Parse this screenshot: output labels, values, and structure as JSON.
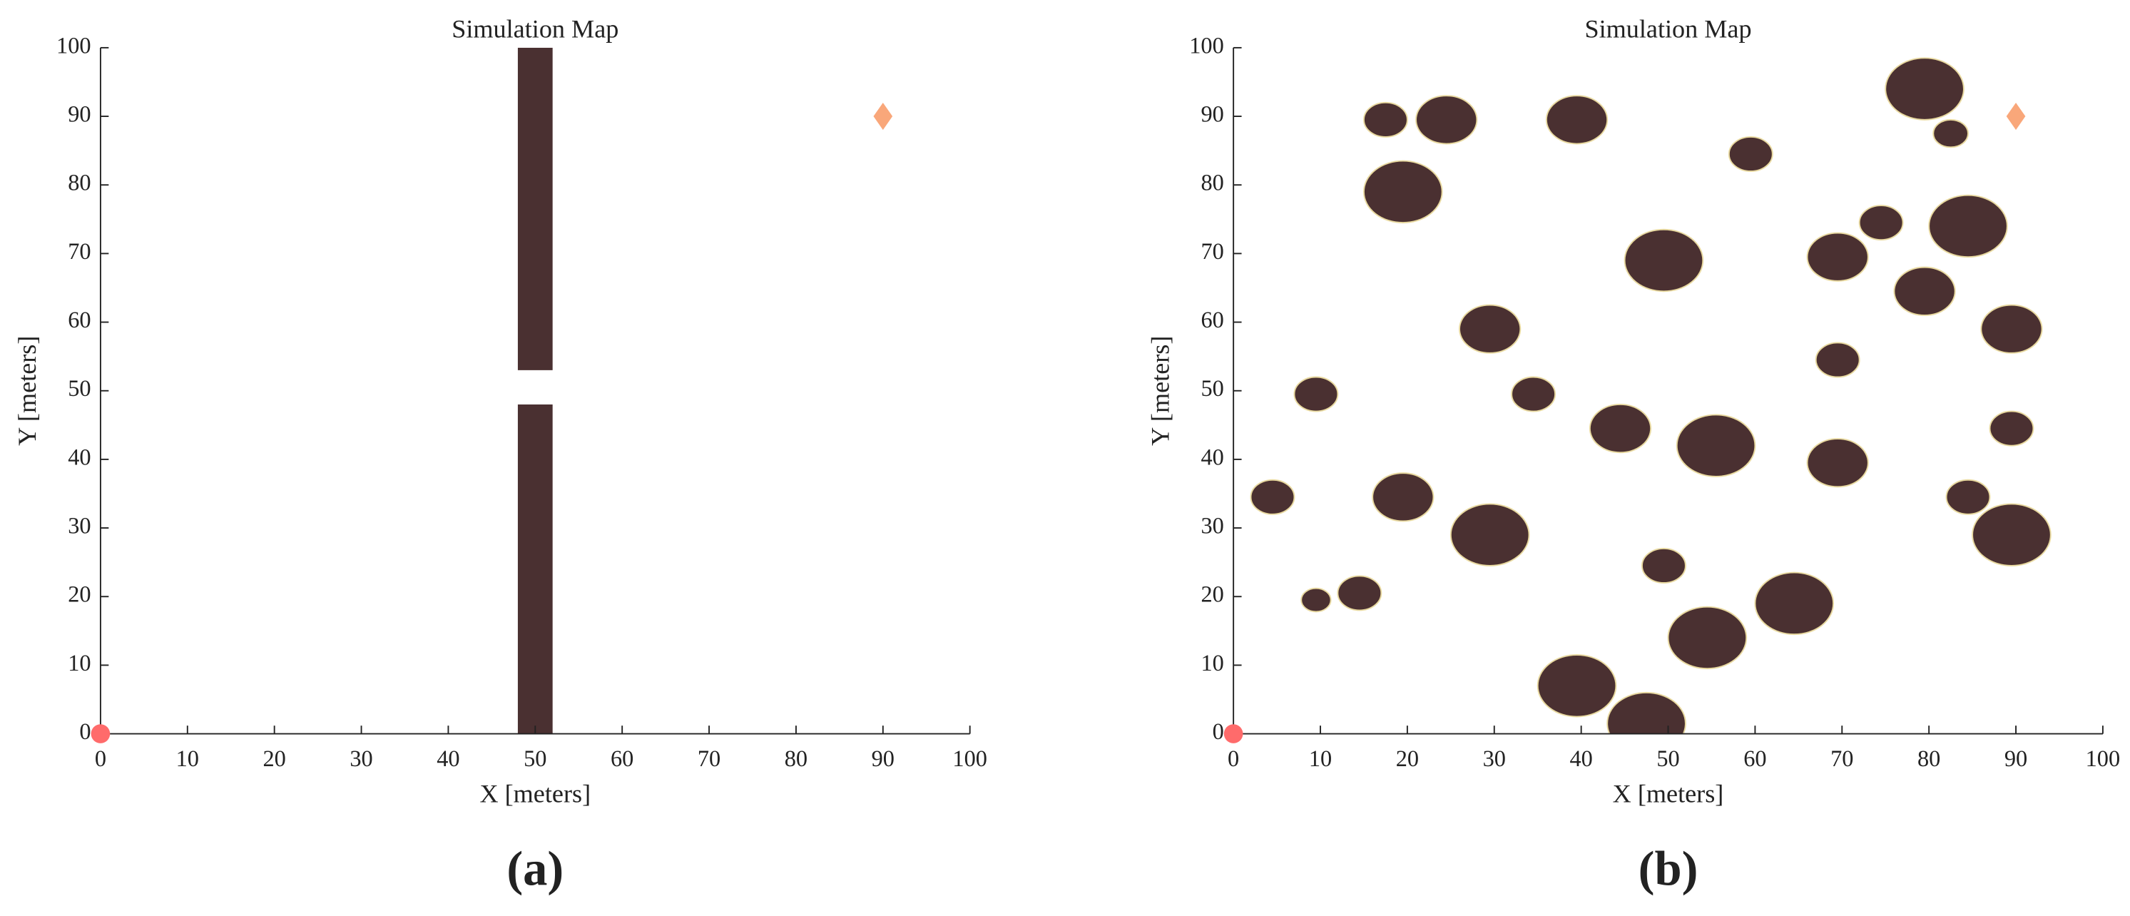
{
  "chart_data": [
    {
      "type": "map",
      "title": "Simulation Map",
      "xlabel": "X [meters]",
      "ylabel": "Y [meters]",
      "panel_label": "(a)",
      "xlim": [
        0,
        100
      ],
      "ylim": [
        0,
        100
      ],
      "xticks": [
        0,
        10,
        20,
        30,
        40,
        50,
        60,
        70,
        80,
        90,
        100
      ],
      "yticks": [
        0,
        10,
        20,
        30,
        40,
        50,
        60,
        70,
        80,
        90,
        100
      ],
      "obstacle_color": "#4a3031",
      "walls": {
        "x0": [
          48,
          48
        ],
        "x1": [
          52,
          52
        ],
        "y0": [
          53,
          0
        ],
        "y1": [
          100,
          48
        ]
      },
      "start": {
        "x": 0,
        "y": 0,
        "color": "#ff6b6b"
      },
      "goal": {
        "x": 90,
        "y": 90,
        "color": "#f9a77a"
      }
    },
    {
      "type": "map",
      "title": "Simulation Map",
      "xlabel": "X [meters]",
      "ylabel": "Y [meters]",
      "panel_label": "(b)",
      "xlim": [
        0,
        100
      ],
      "ylim": [
        0,
        100
      ],
      "xticks": [
        0,
        10,
        20,
        30,
        40,
        50,
        60,
        70,
        80,
        90,
        100
      ],
      "yticks": [
        0,
        10,
        20,
        30,
        40,
        50,
        60,
        70,
        80,
        90,
        100
      ],
      "obstacle_color": "#4a3031",
      "obstacle_edge": "#e8d9a0",
      "obstacles": {
        "x": [
          79.5,
          17.5,
          24.5,
          39.5,
          82.5,
          59.5,
          19.5,
          74.5,
          84.5,
          49.5,
          69.5,
          79.5,
          29.5,
          89.5,
          69.5,
          9.5,
          34.5,
          44.5,
          55.5,
          69.5,
          89.5,
          4.5,
          19.5,
          84.5,
          29.5,
          89.5,
          49.5,
          9.5,
          14.5,
          64.5,
          54.5,
          39.5,
          47.5
        ],
        "y": [
          94,
          89.5,
          89.5,
          89.5,
          87.5,
          84.5,
          79,
          74.5,
          74,
          69,
          69.5,
          64.5,
          59,
          59,
          54.5,
          49.5,
          49.5,
          44.5,
          42,
          39.5,
          44.5,
          34.5,
          34.5,
          34.5,
          29,
          29,
          24.5,
          19.5,
          20.5,
          19,
          14,
          7,
          1.5
        ],
        "r": [
          4.5,
          2.5,
          3.5,
          3.5,
          2,
          2.5,
          4.5,
          2.5,
          4.5,
          4.5,
          3.5,
          3.5,
          3.5,
          3.5,
          2.5,
          2.5,
          2.5,
          3.5,
          4.5,
          3.5,
          2.5,
          2.5,
          3.5,
          2.5,
          4.5,
          4.5,
          2.5,
          1.7,
          2.5,
          4.5,
          4.5,
          4.5,
          4.5
        ]
      },
      "start": {
        "x": 0,
        "y": 0,
        "color": "#ff6b6b"
      },
      "goal": {
        "x": 90,
        "y": 90,
        "color": "#f9a77a"
      }
    }
  ]
}
